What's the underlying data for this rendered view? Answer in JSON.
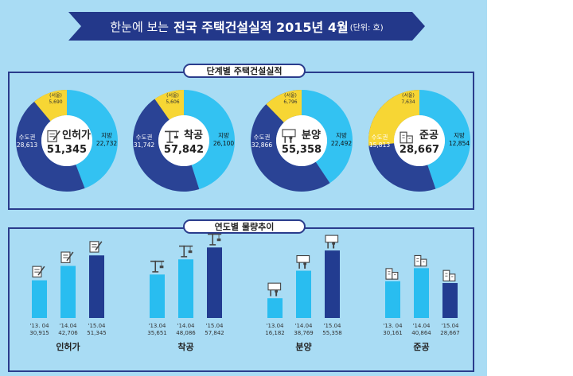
{
  "header": {
    "title_prefix": "한눈에 보는",
    "title_main": "전국 주택건설실적 2015년 4월",
    "unit": "(단위: 호)"
  },
  "section1_title": "단계별 주택건설실적",
  "section2_title": "연도별 물량추이",
  "colors": {
    "capital": "#2a4395",
    "local": "#33c2f2",
    "seoul": "#f7d634",
    "bar_light": "#29bdf0",
    "bar_dark": "#223c90"
  },
  "chart_data": [
    {
      "type": "pie",
      "title": "단계별 주택건설실적",
      "donuts": [
        {
          "name": "인허가",
          "total": "51,345",
          "capital_label": "수도권",
          "capital": "28,613",
          "local_label": "지방",
          "local": "22,732",
          "seoul_label": "(서울)",
          "seoul": "5,690",
          "icon": "permit-document-icon"
        },
        {
          "name": "착공",
          "total": "57,842",
          "capital_label": "수도권",
          "capital": "31,742",
          "local_label": "지방",
          "local": "26,100",
          "seoul_label": "(서울)",
          "seoul": "5,606",
          "icon": "crane-icon"
        },
        {
          "name": "분양",
          "total": "55,358",
          "capital_label": "수도권",
          "capital": "32,866",
          "local_label": "지방",
          "local": "22,492",
          "seoul_label": "(서울)",
          "seoul": "6,796",
          "icon": "sale-sign-icon"
        },
        {
          "name": "준공",
          "total": "28,667",
          "capital_label": "수도권",
          "capital": "15,813",
          "local_label": "지방",
          "local": "12,854",
          "seoul_label": "(서울)",
          "seoul": "7,634",
          "icon": "buildings-icon"
        }
      ]
    },
    {
      "type": "bar",
      "title": "연도별 물량추이",
      "groups": [
        {
          "name": "인허가",
          "icon": "permit-document-icon",
          "bars": [
            {
              "label": "'13. 04",
              "value": 30915,
              "text": "30,915"
            },
            {
              "label": "'14.04",
              "value": 42706,
              "text": "42,706"
            },
            {
              "label": "'15.04",
              "value": 51345,
              "text": "51,345"
            }
          ]
        },
        {
          "name": "착공",
          "icon": "crane-icon",
          "bars": [
            {
              "label": "'13.04",
              "value": 35651,
              "text": "35,651"
            },
            {
              "label": "'14.04",
              "value": 48086,
              "text": "48,086"
            },
            {
              "label": "'15.04",
              "value": 57842,
              "text": "57,842"
            }
          ]
        },
        {
          "name": "분양",
          "icon": "sale-sign-icon",
          "bars": [
            {
              "label": "'13.04",
              "value": 16182,
              "text": "16,182"
            },
            {
              "label": "'14.04",
              "value": 38769,
              "text": "38,769"
            },
            {
              "label": "'15.04",
              "value": 55358,
              "text": "55,358"
            }
          ]
        },
        {
          "name": "준공",
          "icon": "buildings-icon",
          "bars": [
            {
              "label": "'13. 04",
              "value": 30161,
              "text": "30,161"
            },
            {
              "label": "'14.04",
              "value": 40864,
              "text": "40,864"
            },
            {
              "label": "'15.04",
              "value": 28667,
              "text": "28,667"
            }
          ]
        }
      ]
    }
  ]
}
